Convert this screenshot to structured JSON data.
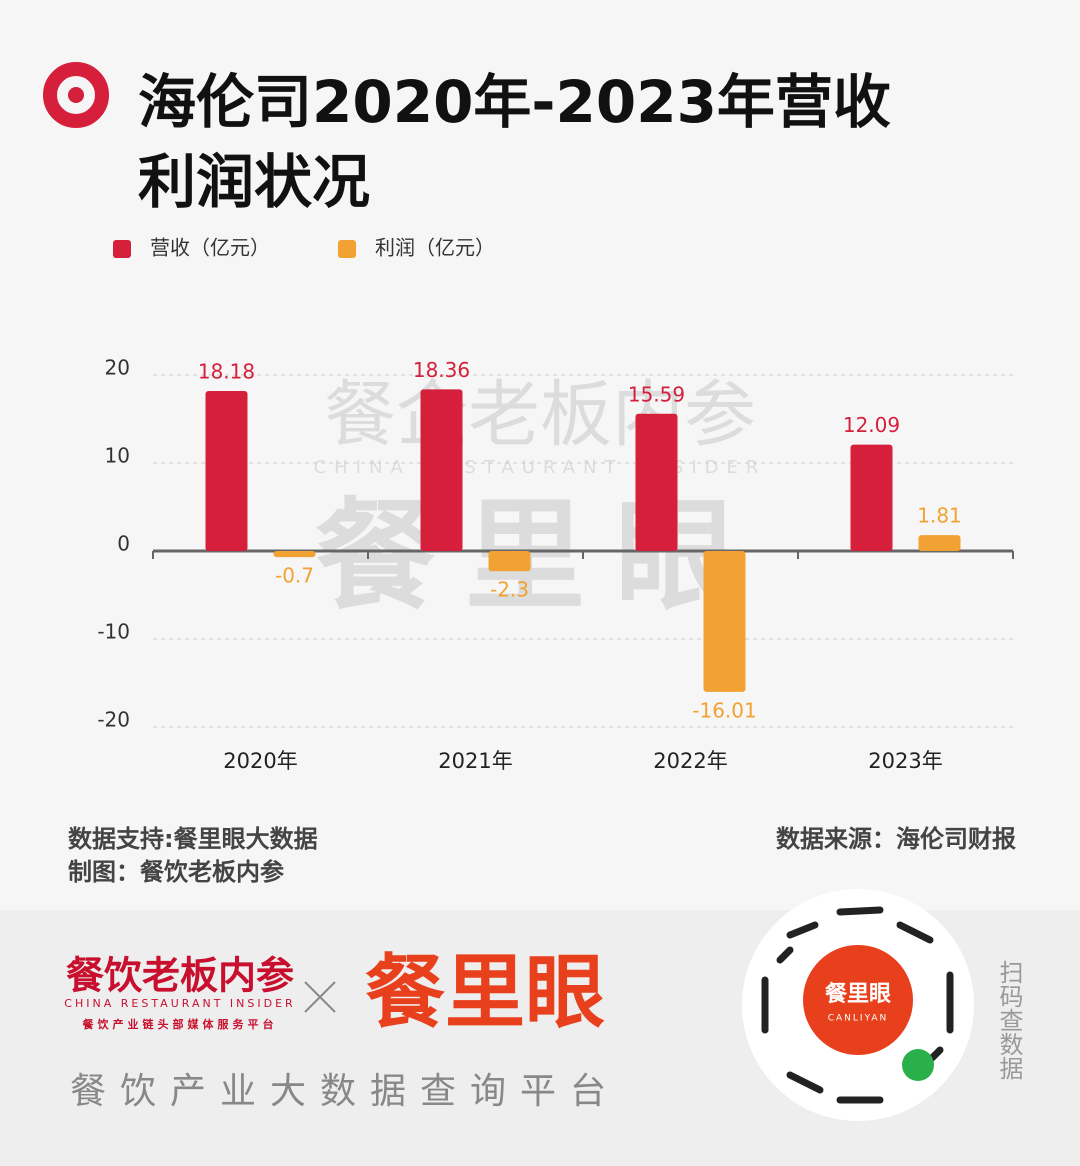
{
  "chart_data": {
    "type": "bar",
    "title": "海伦司2020年-2023年营收利润状况",
    "categories": [
      "2020年",
      "2021年",
      "2022年",
      "2023年"
    ],
    "series": [
      {
        "name": "营收（亿元）",
        "color": "#d51f3b",
        "values": [
          18.18,
          18.36,
          15.59,
          12.09
        ]
      },
      {
        "name": "利润（亿元）",
        "color": "#f2a232",
        "values": [
          -0.7,
          -2.3,
          -16.01,
          1.81
        ]
      }
    ],
    "ylim": [
      -20,
      20
    ],
    "yticks": [
      20,
      10,
      0,
      -10,
      -20
    ],
    "grid": true,
    "legend": "top-left"
  },
  "watermark": {
    "brand": "餐企老板内参",
    "brand_en": "CHINA RESTAURANT INSIDER",
    "product": "餐里眼"
  },
  "footer": {
    "support": "数据支持:餐里眼大数据",
    "maker": "制图：餐饮老板内参",
    "source": "数据来源：海伦司财报"
  },
  "banner": {
    "brand": "餐饮老板内参",
    "brand_en": "CHINA RESTAURANT INSIDER",
    "brand_sub": "餐饮产业链头部媒体服务平台",
    "product": "餐里眼",
    "slogan": "餐饮产业大数据查询平台",
    "qr_center": "餐里眼",
    "qr_center_en": "CANLIYAN",
    "scan": "扫码查数据"
  }
}
